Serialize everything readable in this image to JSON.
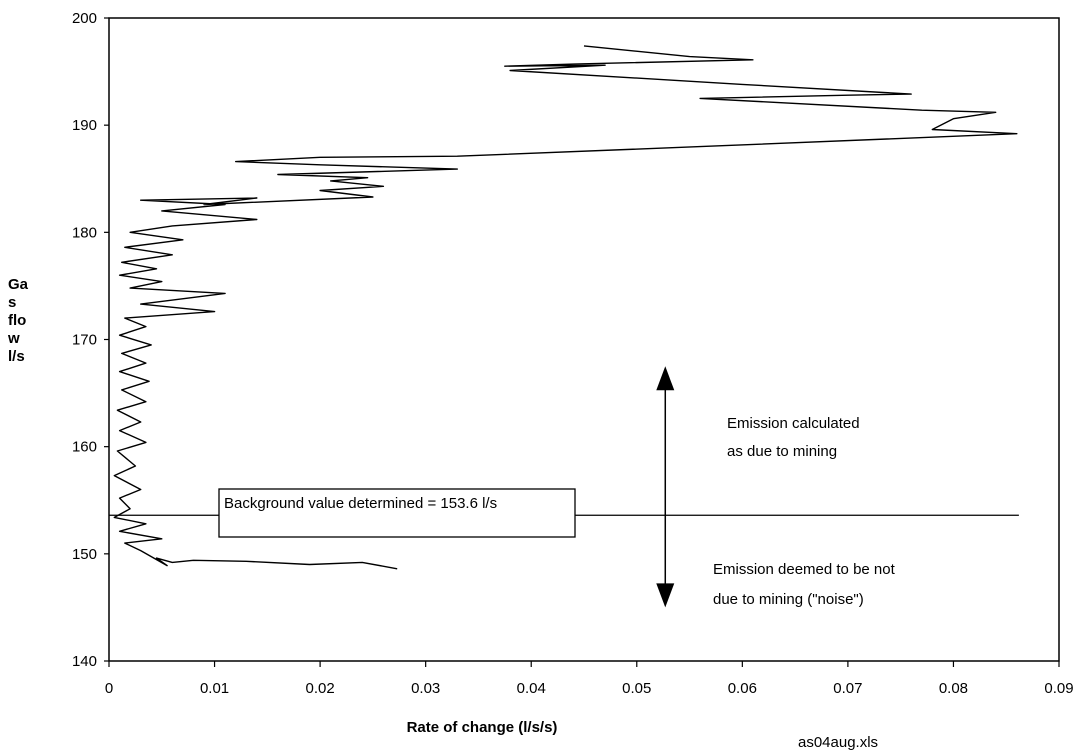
{
  "chart_data": {
    "type": "line",
    "title": "",
    "xlabel": "Rate of change (l/s/s)",
    "ylabel_lines": [
      "Ga",
      "s",
      "flo",
      "w",
      "l/s"
    ],
    "xlim": [
      0,
      0.09
    ],
    "ylim": [
      140,
      200
    ],
    "x_ticks": [
      "0",
      "0.01",
      "0.02",
      "0.03",
      "0.04",
      "0.05",
      "0.06",
      "0.07",
      "0.08",
      "0.09"
    ],
    "y_ticks": [
      "140",
      "150",
      "160",
      "170",
      "180",
      "190",
      "200"
    ],
    "grid": false,
    "legend": "none",
    "series": [
      {
        "values": [
          [
            0.0273,
            148.6
          ],
          [
            0.024,
            149.2
          ],
          [
            0.019,
            149.0
          ],
          [
            0.013,
            149.3
          ],
          [
            0.008,
            149.4
          ],
          [
            0.006,
            149.2
          ],
          [
            0.0045,
            149.6
          ],
          [
            0.0055,
            148.9
          ],
          [
            0.003,
            150.3
          ],
          [
            0.0015,
            151.0
          ],
          [
            0.005,
            151.4
          ],
          [
            0.001,
            152.1
          ],
          [
            0.0035,
            152.8
          ],
          [
            0.0005,
            153.4
          ],
          [
            0.002,
            154.2
          ],
          [
            0.001,
            155.2
          ],
          [
            0.003,
            156.0
          ],
          [
            0.0005,
            157.3
          ],
          [
            0.0025,
            158.2
          ],
          [
            0.0008,
            159.6
          ],
          [
            0.0035,
            160.4
          ],
          [
            0.001,
            161.5
          ],
          [
            0.003,
            162.3
          ],
          [
            0.0008,
            163.4
          ],
          [
            0.0035,
            164.2
          ],
          [
            0.0012,
            165.3
          ],
          [
            0.0038,
            166.1
          ],
          [
            0.001,
            167.0
          ],
          [
            0.0035,
            167.8
          ],
          [
            0.0012,
            168.7
          ],
          [
            0.004,
            169.5
          ],
          [
            0.001,
            170.4
          ],
          [
            0.0035,
            171.2
          ],
          [
            0.0015,
            172.0
          ],
          [
            0.01,
            172.6
          ],
          [
            0.003,
            173.3
          ],
          [
            0.011,
            174.3
          ],
          [
            0.002,
            174.8
          ],
          [
            0.005,
            175.4
          ],
          [
            0.001,
            176.0
          ],
          [
            0.0045,
            176.6
          ],
          [
            0.0012,
            177.2
          ],
          [
            0.006,
            177.9
          ],
          [
            0.0015,
            178.6
          ],
          [
            0.007,
            179.3
          ],
          [
            0.002,
            180.0
          ],
          [
            0.006,
            180.6
          ],
          [
            0.014,
            181.2
          ],
          [
            0.005,
            182.0
          ],
          [
            0.011,
            182.6
          ],
          [
            0.003,
            183.0
          ],
          [
            0.014,
            183.2
          ],
          [
            0.009,
            182.6
          ],
          [
            0.025,
            183.3
          ],
          [
            0.02,
            183.9
          ],
          [
            0.026,
            184.3
          ],
          [
            0.021,
            184.8
          ],
          [
            0.0245,
            185.1
          ],
          [
            0.016,
            185.4
          ],
          [
            0.033,
            185.9
          ],
          [
            0.02,
            186.3
          ],
          [
            0.012,
            186.6
          ],
          [
            0.02,
            187.0
          ],
          [
            0.033,
            187.1
          ],
          [
            0.056,
            188.0
          ],
          [
            0.086,
            189.2
          ],
          [
            0.078,
            189.6
          ],
          [
            0.08,
            190.6
          ],
          [
            0.084,
            191.2
          ],
          [
            0.077,
            191.4
          ],
          [
            0.056,
            192.5
          ],
          [
            0.07,
            192.8
          ],
          [
            0.076,
            192.9
          ],
          [
            0.06,
            193.8
          ],
          [
            0.038,
            195.1
          ],
          [
            0.047,
            195.6
          ],
          [
            0.0375,
            195.5
          ],
          [
            0.044,
            195.7
          ],
          [
            0.061,
            196.1
          ],
          [
            0.055,
            196.4
          ],
          [
            0.045,
            197.4
          ]
        ]
      }
    ],
    "reference_line": {
      "y": 153.6,
      "x_range": [
        0,
        0.0862
      ]
    },
    "arrow": {
      "x": 0.0527,
      "y_top": 167.5,
      "y_bottom": 145.0
    },
    "annotations": {
      "background": "Background value determined = 153.6 l/s",
      "above_line1": "Emission calculated",
      "above_line2": "as due to mining",
      "below_line1": "Emission deemed to be not",
      "below_line2": "due to mining (\"noise\")"
    },
    "source_note": "as04aug.xls"
  }
}
